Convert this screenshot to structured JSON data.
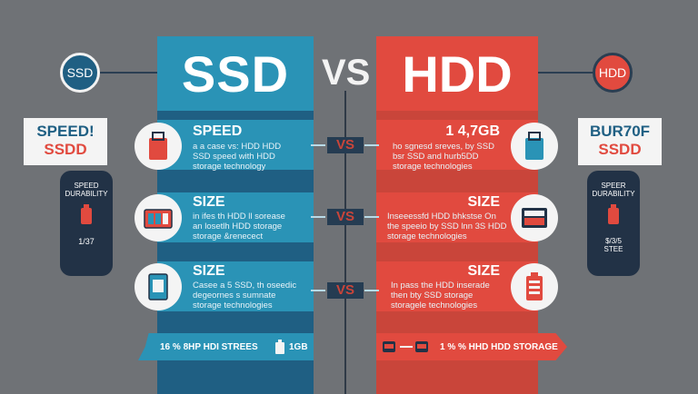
{
  "header": {
    "ssd_title": "SSD",
    "vs": "VS",
    "hdd_title": "HDD"
  },
  "left_side": {
    "badge": "SSD",
    "card_line1": "SPEED!",
    "card_line2": "SSDD",
    "pill_text": "SPEED\nDURABILITY",
    "pill_number": "1/37"
  },
  "right_side": {
    "badge": "HDD",
    "card_line1": "BUR70F",
    "card_line2": "SSDD",
    "pill_text": "SPEER\nDURABILITY",
    "pill_number": "$/3/5\nSTEE"
  },
  "rows": [
    {
      "ssd_title": "SPEED",
      "ssd_text": "a a case vs: HDD HDD\nSSD speed with HDD\nstorage technology",
      "vs": "VS",
      "hdd_title": "1 4,7GB",
      "hdd_text": "ho sgnesd sreves, by SSD\nbsr SSD and hurb5DD\nstorage technologies"
    },
    {
      "ssd_title": "SIZE",
      "ssd_text": "in ifes th HDD ll sorease\nan losetlh HDD storage\nstorage &renecect",
      "vs": "VS",
      "hdd_title": "SIZE",
      "hdd_text": "Inseeessfd HDD bhkstse On\nthe speeio by SSD lnn 3S HDD\nstorage technologies"
    },
    {
      "ssd_title": "SIZE",
      "ssd_text": "Casee a 5 SSD, th oseedic\ndegeornes s sumnate\nstorage technologies",
      "vs": "VS",
      "hdd_title": "SIZE",
      "hdd_text": "In pass the HDD inserade\nthen bty SSD storage\nstoragele technologies"
    }
  ],
  "bottom": {
    "ssd_text": "16 % 8HP HDI STREES",
    "ssd_extra": "1GB",
    "hdd_text": "1 % % HHD HDD STORAGE"
  }
}
